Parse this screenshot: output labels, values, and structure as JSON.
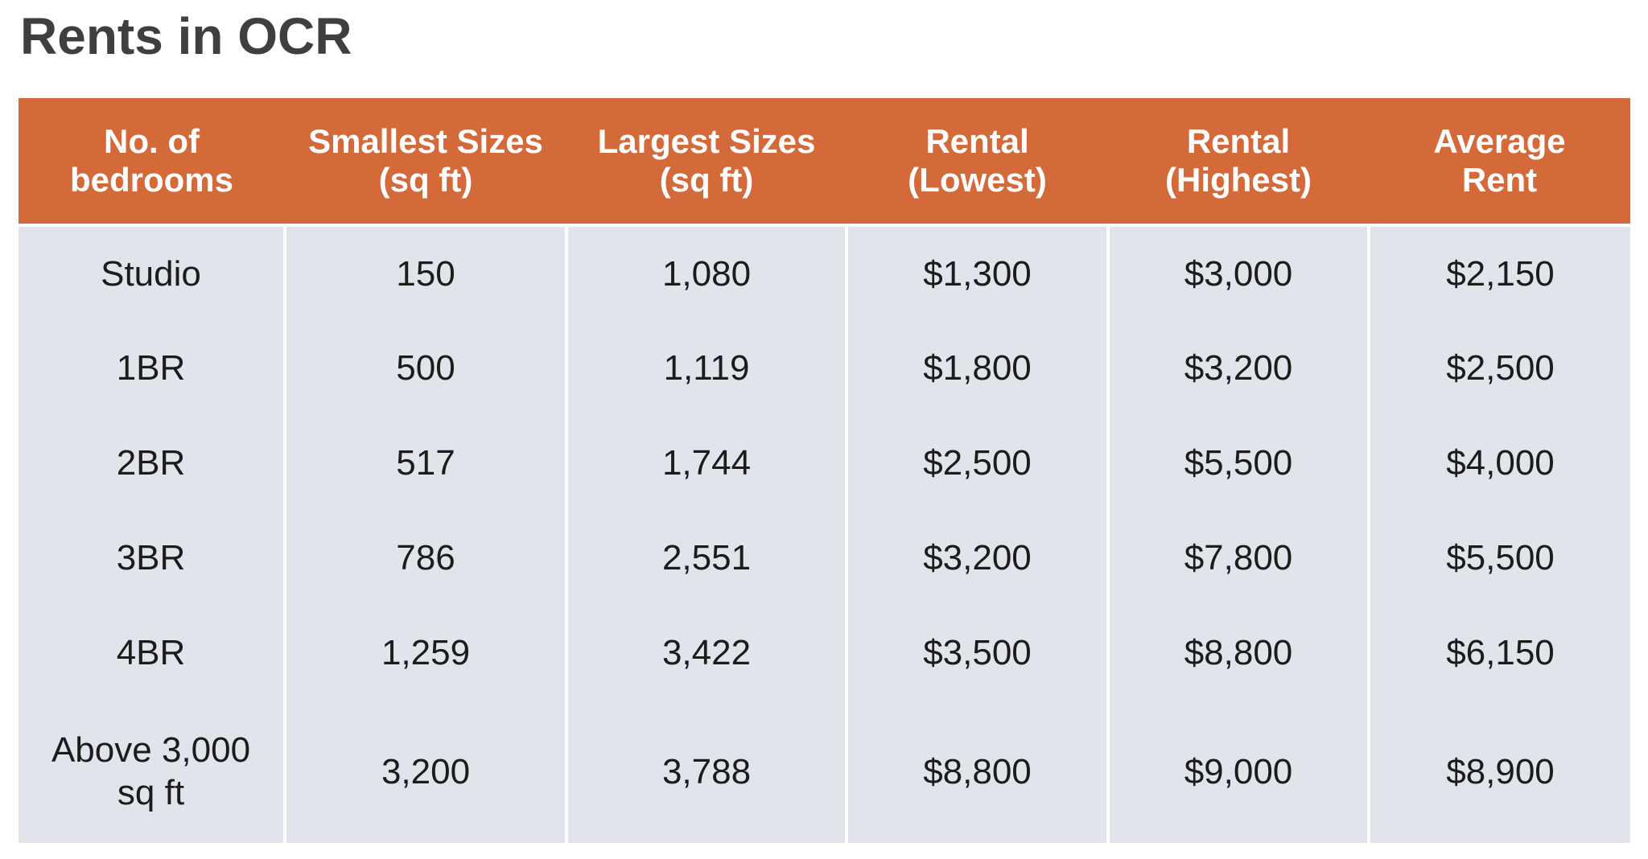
{
  "page": {
    "title": "Rents in OCR"
  },
  "colors": {
    "header_bg": "#D4693A",
    "header_text": "#FFFFFF",
    "body_bg": "#E1E4EB",
    "body_text": "#1C1C1C",
    "title_text": "#3F3F3F",
    "separator": "#FFFFFF"
  },
  "table": {
    "headers": [
      "No. of\nbedrooms",
      "Smallest Sizes\n(sq ft)",
      "Largest Sizes\n(sq ft)",
      "Rental\n(Lowest)",
      "Rental\n(Highest)",
      "Average\nRent"
    ],
    "rows": [
      [
        "Studio",
        "150",
        "1,080",
        "$1,300",
        "$3,000",
        "$2,150"
      ],
      [
        "1BR",
        "500",
        "1,119",
        "$1,800",
        "$3,200",
        "$2,500"
      ],
      [
        "2BR",
        "517",
        "1,744",
        "$2,500",
        "$5,500",
        "$4,000"
      ],
      [
        "3BR",
        "786",
        "2,551",
        "$3,200",
        "$7,800",
        "$5,500"
      ],
      [
        "4BR",
        "1,259",
        "3,422",
        "$3,500",
        "$8,800",
        "$6,150"
      ],
      [
        "Above 3,000\nsq ft",
        "3,200",
        "3,788",
        "$8,800",
        "$9,000",
        "$8,900"
      ]
    ]
  },
  "chart_data": {
    "type": "table",
    "title": "Rents in OCR",
    "columns": [
      "No. of bedrooms",
      "Smallest Sizes (sq ft)",
      "Largest Sizes (sq ft)",
      "Rental (Lowest)",
      "Rental (Highest)",
      "Average Rent"
    ],
    "rows": [
      [
        "Studio",
        150,
        1080,
        "$1,300",
        "$3,000",
        "$2,150"
      ],
      [
        "1BR",
        500,
        1119,
        "$1,800",
        "$3,200",
        "$2,500"
      ],
      [
        "2BR",
        517,
        1744,
        "$2,500",
        "$5,500",
        "$4,000"
      ],
      [
        "3BR",
        786,
        2551,
        "$3,200",
        "$7,800",
        "$5,500"
      ],
      [
        "4BR",
        1259,
        3422,
        "$3,500",
        "$8,800",
        "$6,150"
      ],
      [
        "Above 3,000 sq ft",
        3200,
        3788,
        "$8,800",
        "$9,000",
        "$8,900"
      ]
    ]
  }
}
